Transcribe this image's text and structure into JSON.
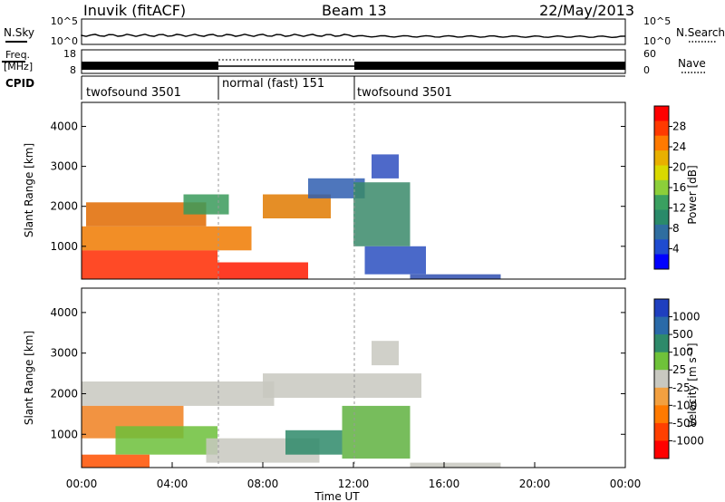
{
  "header": {
    "station": "Inuvik (fitACF)",
    "beam": "Beam 13",
    "date": "22/May/2013"
  },
  "top_panel": {
    "left_label": "N.Sky",
    "right_label": "N.Search",
    "left_ticks": [
      "10^5",
      "10^0"
    ],
    "right_ticks": [
      "10^5",
      "10^0"
    ]
  },
  "freq_panel": {
    "left_label_1": "Freq.",
    "left_label_2": "[MHz]",
    "right_label": "Nave",
    "left_ticks": [
      "18",
      "8"
    ],
    "right_ticks": [
      "60",
      "0"
    ]
  },
  "cpid": {
    "label": "CPID",
    "segments": [
      {
        "name": "twofsound 3501",
        "start_hour": 0,
        "end_hour": 6
      },
      {
        "name": "normal (fast) 151",
        "start_hour": 6,
        "end_hour": 12
      },
      {
        "name": "twofsound 3501",
        "start_hour": 12,
        "end_hour": 24
      }
    ]
  },
  "colorbars": {
    "power": {
      "label": "Power [dB]",
      "ticks": [
        "28",
        "24",
        "20",
        "16",
        "12",
        "8",
        "4"
      ],
      "colors": [
        "#ff0000",
        "#ff3a00",
        "#ff7a00",
        "#e8b000",
        "#d9d900",
        "#8ccf3a",
        "#3aa060",
        "#2a8a6a",
        "#2f6ea0",
        "#1f4bd0",
        "#0000ff"
      ]
    },
    "velocity": {
      "label": "Velocity [m s⁻¹]",
      "ticks": [
        "1000",
        "500",
        "100",
        "25",
        "-25",
        "-100",
        "-500",
        "-1000"
      ],
      "colors": [
        "#1f3fbf",
        "#2a6aa8",
        "#2e8a6a",
        "#6fc23a",
        "#c8c8c0",
        "#f2a040",
        "#ff7a00",
        "#ff4000",
        "#ff0000"
      ]
    }
  },
  "chart_data": [
    {
      "type": "heatmap",
      "title": "Power",
      "xlabel": "Time UT",
      "ylabel": "Slant Range [km]",
      "xlim": [
        "00:00",
        "24:00"
      ],
      "ylim": [
        180,
        4600
      ],
      "yticks": [
        1000,
        2000,
        3000,
        4000
      ],
      "xticks": [
        "00:00",
        "04:00",
        "08:00",
        "12:00",
        "16:00",
        "20:00",
        "00:00"
      ],
      "regions": [
        {
          "t0": 0.0,
          "t1": 6.0,
          "r0": 180,
          "r1": 900,
          "color": "#ff2a00"
        },
        {
          "t0": 6.0,
          "t1": 10.0,
          "r0": 180,
          "r1": 600,
          "color": "#ff1a00"
        },
        {
          "t0": 0.0,
          "t1": 7.5,
          "r0": 900,
          "r1": 1500,
          "color": "#f07a00"
        },
        {
          "t0": 0.2,
          "t1": 5.5,
          "r0": 1500,
          "r1": 2100,
          "color": "#e06a00"
        },
        {
          "t0": 4.5,
          "t1": 6.5,
          "r0": 1800,
          "r1": 2300,
          "color": "#3a9a5a"
        },
        {
          "t0": 8.0,
          "t1": 11.0,
          "r0": 1700,
          "r1": 2300,
          "color": "#e07a00"
        },
        {
          "t0": 10.0,
          "t1": 12.5,
          "r0": 2200,
          "r1": 2700,
          "color": "#2f5eb0"
        },
        {
          "t0": 12.0,
          "t1": 14.5,
          "r0": 1000,
          "r1": 2600,
          "color": "#3a8a6a"
        },
        {
          "t0": 12.5,
          "t1": 15.2,
          "r0": 300,
          "r1": 1000,
          "color": "#2a4fc0"
        },
        {
          "t0": 14.5,
          "t1": 18.5,
          "r0": 180,
          "r1": 300,
          "color": "#2f4fb0"
        },
        {
          "t0": 12.8,
          "t1": 14.0,
          "r0": 2700,
          "r1": 3300,
          "color": "#2f4fc0"
        }
      ]
    },
    {
      "type": "heatmap",
      "title": "Velocity",
      "xlabel": "Time UT",
      "ylabel": "Slant Range [km]",
      "xlim": [
        "00:00",
        "24:00"
      ],
      "ylim": [
        180,
        4600
      ],
      "yticks": [
        1000,
        2000,
        3000,
        4000
      ],
      "xticks": [
        "00:00",
        "04:00",
        "08:00",
        "12:00",
        "16:00",
        "20:00",
        "00:00"
      ],
      "regions": [
        {
          "t0": 0.0,
          "t1": 8.5,
          "r0": 1700,
          "r1": 2300,
          "color": "#c8c8c0"
        },
        {
          "t0": 8.0,
          "t1": 15.0,
          "r0": 1900,
          "r1": 2500,
          "color": "#c8c8c0"
        },
        {
          "t0": 0.0,
          "t1": 4.5,
          "r0": 900,
          "r1": 1700,
          "color": "#f08020"
        },
        {
          "t0": 1.5,
          "t1": 6.0,
          "r0": 500,
          "r1": 1200,
          "color": "#6cbf3a"
        },
        {
          "t0": 5.5,
          "t1": 10.5,
          "r0": 300,
          "r1": 900,
          "color": "#c8c8c0"
        },
        {
          "t0": 9.0,
          "t1": 11.5,
          "r0": 500,
          "r1": 1100,
          "color": "#2e8a6a"
        },
        {
          "t0": 11.5,
          "t1": 14.5,
          "r0": 400,
          "r1": 1700,
          "color": "#5fb240"
        },
        {
          "t0": 0.0,
          "t1": 3.0,
          "r0": 180,
          "r1": 500,
          "color": "#ff5000"
        },
        {
          "t0": 14.5,
          "t1": 18.5,
          "r0": 180,
          "r1": 300,
          "color": "#c8c8c0"
        },
        {
          "t0": 12.8,
          "t1": 14.0,
          "r0": 2700,
          "r1": 3300,
          "color": "#c8c8c0"
        }
      ]
    }
  ]
}
